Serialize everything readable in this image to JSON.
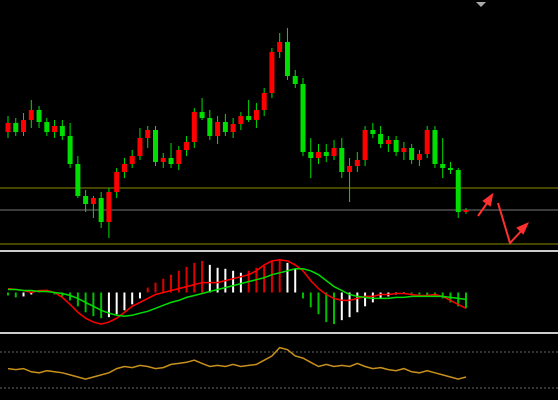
{
  "chart_data": [
    {
      "type": "candlestick",
      "ylim": [
        0,
        248
      ],
      "up_color": "#ff0000",
      "down_color": "#00e000",
      "wick_color": "#00e000",
      "open": [
        116,
        125,
        116,
        128,
        138,
        126,
        116,
        122,
        112,
        84,
        52,
        44,
        50,
        26,
        56,
        76,
        84,
        92,
        110,
        118,
        86,
        90,
        84,
        98,
        106,
        136,
        130,
        112,
        126,
        116,
        124,
        132,
        128,
        138,
        155,
        196,
        206,
        172,
        164,
        96,
        90,
        96,
        92,
        100,
        76,
        82,
        88,
        118,
        114,
        104,
        108,
        96,
        100,
        88,
        94,
        118,
        84,
        80,
        78,
        36
      ],
      "high": [
        132,
        130,
        135,
        148,
        142,
        130,
        128,
        128,
        125,
        92,
        58,
        52,
        56,
        60,
        80,
        90,
        98,
        120,
        122,
        122,
        95,
        105,
        102,
        112,
        140,
        150,
        138,
        132,
        134,
        130,
        136,
        148,
        145,
        160,
        200,
        215,
        220,
        178,
        170,
        110,
        104,
        104,
        108,
        110,
        90,
        96,
        122,
        125,
        122,
        112,
        112,
        106,
        104,
        98,
        122,
        122,
        110,
        86,
        80,
        40
      ],
      "low": [
        110,
        112,
        112,
        120,
        120,
        112,
        110,
        108,
        80,
        50,
        36,
        30,
        20,
        10,
        50,
        70,
        80,
        88,
        100,
        82,
        80,
        80,
        78,
        92,
        100,
        128,
        108,
        104,
        112,
        110,
        118,
        126,
        120,
        132,
        150,
        190,
        168,
        160,
        92,
        70,
        84,
        86,
        88,
        70,
        46,
        76,
        82,
        110,
        100,
        96,
        92,
        88,
        84,
        82,
        90,
        80,
        70,
        74,
        30,
        34
      ],
      "close": [
        125,
        116,
        128,
        138,
        126,
        116,
        122,
        112,
        84,
        52,
        44,
        50,
        26,
        56,
        76,
        84,
        92,
        110,
        118,
        86,
        90,
        84,
        98,
        106,
        136,
        130,
        112,
        126,
        116,
        124,
        132,
        128,
        138,
        155,
        196,
        206,
        172,
        164,
        96,
        90,
        96,
        92,
        100,
        76,
        82,
        88,
        118,
        114,
        104,
        108,
        96,
        100,
        88,
        94,
        118,
        84,
        80,
        78,
        36,
        38
      ]
    },
    {
      "type": "histogram-macd",
      "ylim": [
        -40,
        40
      ],
      "rise_up_color": "#e00000",
      "fall_color": "#ffffff",
      "fall_down_color": "#00c000",
      "values": [
        -3,
        -5,
        -4,
        -2,
        2,
        3,
        -2,
        -4,
        -8,
        -14,
        -20,
        -24,
        -26,
        -25,
        -22,
        -18,
        -12,
        -6,
        5,
        10,
        14,
        18,
        22,
        26,
        30,
        32,
        28,
        25,
        24,
        22,
        20,
        22,
        25,
        27,
        32,
        34,
        30,
        24,
        -6,
        -15,
        -22,
        -30,
        -32,
        -28,
        -25,
        -20,
        -14,
        -10,
        -6,
        -4,
        -2,
        -1,
        -1,
        -2,
        -3,
        -4,
        -6,
        -10,
        -14,
        -16
      ],
      "series": [
        {
          "color": "#ff0000",
          "values": [
            4,
            3,
            2,
            0,
            2,
            2,
            0,
            -5,
            -12,
            -20,
            -26,
            -30,
            -32,
            -30,
            -26,
            -20,
            -14,
            -10,
            -6,
            -2,
            0,
            2,
            4,
            6,
            8,
            10,
            10,
            10,
            12,
            14,
            16,
            18,
            22,
            28,
            32,
            33,
            32,
            28,
            22,
            12,
            4,
            -2,
            -6,
            -8,
            -8,
            -6,
            -4,
            -4,
            -2,
            -2,
            -1,
            -1,
            -2,
            -3,
            -3,
            -2,
            -4,
            -8,
            -12,
            -16
          ]
        },
        {
          "color": "#00dd00",
          "values": [
            3,
            3,
            2,
            2,
            1,
            1,
            0,
            -1,
            -3,
            -6,
            -10,
            -14,
            -18,
            -21,
            -23,
            -24,
            -23,
            -21,
            -19,
            -16,
            -13,
            -10,
            -8,
            -5,
            -3,
            -1,
            1,
            3,
            5,
            7,
            9,
            11,
            13,
            15,
            18,
            20,
            22,
            24,
            24,
            22,
            18,
            12,
            6,
            2,
            -2,
            -4,
            -5,
            -6,
            -6,
            -6,
            -5,
            -5,
            -4,
            -4,
            -4,
            -4,
            -4,
            -5,
            -6,
            -7
          ]
        }
      ]
    },
    {
      "type": "line",
      "ylim": [
        0,
        60
      ],
      "color": "#c8901c",
      "values": [
        28,
        27,
        28,
        25,
        24,
        26,
        25,
        24,
        22,
        20,
        18,
        20,
        22,
        24,
        28,
        30,
        29,
        31,
        30,
        28,
        29,
        32,
        33,
        34,
        36,
        33,
        30,
        31,
        30,
        32,
        30,
        31,
        32,
        36,
        40,
        48,
        46,
        40,
        38,
        34,
        30,
        32,
        30,
        31,
        30,
        33,
        30,
        28,
        29,
        27,
        26,
        28,
        25,
        24,
        26,
        24,
        22,
        20,
        18,
        20
      ]
    }
  ]
}
